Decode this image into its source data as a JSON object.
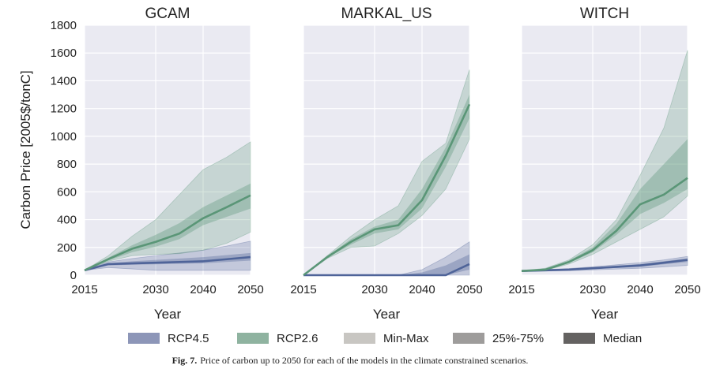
{
  "chart_data": [
    {
      "type": "area",
      "title": "GCAM",
      "xlabel": "Year",
      "ylabel": "Carbon Price  [2005$/tonC]",
      "xlim": [
        2015,
        2050
      ],
      "ylim": [
        0,
        1800
      ],
      "xticks": [
        "2015",
        "2030",
        "2040",
        "2050"
      ],
      "yticks": [
        "0",
        "200",
        "400",
        "600",
        "800",
        "1000",
        "1200",
        "1400",
        "1600",
        "1800"
      ],
      "x": [
        2015,
        2020,
        2025,
        2030,
        2035,
        2040,
        2045,
        2050
      ],
      "series": [
        {
          "name": "RCP4.5",
          "median": [
            35,
            80,
            85,
            90,
            95,
            100,
            115,
            130
          ],
          "q25": [
            35,
            70,
            75,
            78,
            82,
            85,
            95,
            105
          ],
          "q75": [
            35,
            85,
            100,
            110,
            120,
            130,
            145,
            160
          ],
          "min": [
            35,
            55,
            45,
            35,
            35,
            35,
            35,
            35
          ],
          "max": [
            35,
            95,
            120,
            140,
            160,
            180,
            210,
            245
          ]
        },
        {
          "name": "RCP2.6",
          "median": [
            35,
            115,
            190,
            240,
            300,
            410,
            490,
            575
          ],
          "q25": [
            35,
            105,
            165,
            205,
            260,
            360,
            420,
            480
          ],
          "q75": [
            35,
            125,
            215,
            290,
            375,
            490,
            575,
            660
          ],
          "min": [
            35,
            100,
            140,
            150,
            155,
            180,
            230,
            310
          ],
          "max": [
            35,
            140,
            280,
            400,
            580,
            760,
            850,
            960
          ]
        }
      ]
    },
    {
      "type": "area",
      "title": "MARKAL_US",
      "xlabel": "Year",
      "xlim": [
        2015,
        2050
      ],
      "ylim": [
        0,
        1800
      ],
      "xticks": [
        "2015",
        "2030",
        "2040",
        "2050"
      ],
      "x": [
        2015,
        2020,
        2025,
        2030,
        2035,
        2040,
        2045,
        2050
      ],
      "series": [
        {
          "name": "RCP4.5",
          "median": [
            0,
            0,
            0,
            0,
            0,
            0,
            0,
            80
          ],
          "q25": [
            0,
            0,
            0,
            0,
            0,
            0,
            0,
            40
          ],
          "q75": [
            0,
            0,
            0,
            0,
            0,
            20,
            70,
            150
          ],
          "min": [
            0,
            0,
            0,
            0,
            0,
            0,
            0,
            0
          ],
          "max": [
            0,
            0,
            0,
            0,
            0,
            40,
            130,
            240
          ]
        },
        {
          "name": "RCP2.6",
          "median": [
            0,
            130,
            240,
            330,
            360,
            540,
            860,
            1230
          ],
          "q25": [
            0,
            125,
            220,
            300,
            330,
            480,
            780,
            1130
          ],
          "q75": [
            0,
            135,
            260,
            350,
            400,
            620,
            920,
            1300
          ],
          "min": [
            0,
            120,
            200,
            210,
            300,
            430,
            620,
            980
          ],
          "max": [
            0,
            140,
            280,
            400,
            500,
            820,
            950,
            1480
          ]
        }
      ]
    },
    {
      "type": "area",
      "title": "WITCH",
      "xlabel": "Year",
      "xlim": [
        2015,
        2050
      ],
      "ylim": [
        0,
        1800
      ],
      "xticks": [
        "2015",
        "2030",
        "2040",
        "2050"
      ],
      "x": [
        2015,
        2020,
        2025,
        2030,
        2035,
        2040,
        2045,
        2050
      ],
      "series": [
        {
          "name": "RCP4.5",
          "median": [
            30,
            35,
            40,
            50,
            60,
            70,
            90,
            110
          ],
          "q25": [
            30,
            32,
            36,
            44,
            52,
            60,
            78,
            95
          ],
          "q75": [
            30,
            38,
            45,
            56,
            68,
            80,
            100,
            122
          ],
          "min": [
            30,
            30,
            32,
            38,
            44,
            50,
            60,
            70
          ],
          "max": [
            30,
            40,
            48,
            60,
            75,
            90,
            110,
            135
          ]
        },
        {
          "name": "RCP2.6",
          "median": [
            30,
            40,
            95,
            180,
            320,
            510,
            580,
            700
          ],
          "q25": [
            30,
            38,
            88,
            165,
            290,
            440,
            520,
            620
          ],
          "q75": [
            30,
            44,
            105,
            200,
            370,
            620,
            800,
            980
          ],
          "min": [
            30,
            35,
            80,
            150,
            240,
            330,
            420,
            570
          ],
          "max": [
            30,
            50,
            110,
            220,
            400,
            720,
            1060,
            1620
          ]
        }
      ]
    }
  ],
  "legend": [
    {
      "label": "RCP4.5",
      "color": "#8d96b8"
    },
    {
      "label": "RCP2.6",
      "color": "#8fb3a0"
    },
    {
      "label": "Min-Max",
      "color": "#c8c6c2"
    },
    {
      "label": "25%-75%",
      "color": "#9e9c9b"
    },
    {
      "label": "Median",
      "color": "#646261"
    }
  ],
  "colors": {
    "rcp45": "#4f6499",
    "rcp26": "#5a9677",
    "plot_bg": "#eaeaf2",
    "grid": "#ffffff"
  },
  "caption": {
    "label": "Fig. 7.",
    "text": "Price of carbon up to 2050 for each of the models in the climate constrained scenarios."
  }
}
